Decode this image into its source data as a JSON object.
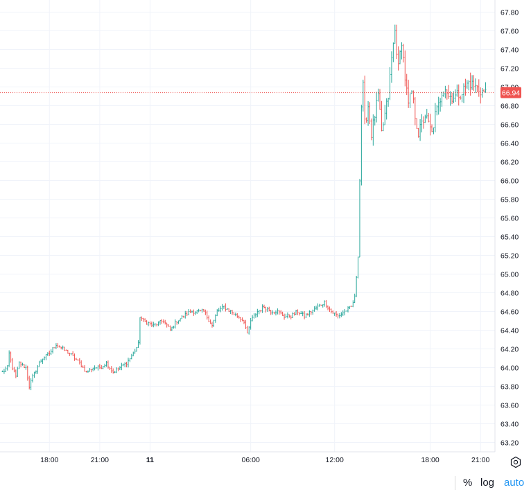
{
  "chart_data": {
    "type": "ohlc",
    "ylim": [
      63.1,
      67.93
    ],
    "y_ticks": [
      "63.20",
      "63.40",
      "63.60",
      "63.80",
      "64.00",
      "64.20",
      "64.40",
      "64.60",
      "64.80",
      "65.00",
      "65.20",
      "65.40",
      "65.60",
      "65.80",
      "66.00",
      "66.20",
      "66.40",
      "66.60",
      "66.80",
      "67.00",
      "67.20",
      "67.40",
      "67.60",
      "67.80"
    ],
    "x_ticks": [
      {
        "label": "18:00",
        "bar": 28
      },
      {
        "label": "21:00",
        "bar": 58
      },
      {
        "label": "11",
        "bar": 88,
        "bold": true
      },
      {
        "label": "06:00",
        "bar": 148
      },
      {
        "label": "12:00",
        "bar": 198
      },
      {
        "label": "18:00",
        "bar": 255
      },
      {
        "label": "21:00",
        "bar": 285
      }
    ],
    "last_price": "66.94",
    "last_price_value": 66.94,
    "colors": {
      "up": "#26a69a",
      "down": "#ef5350",
      "grid": "#f0f3fa",
      "last_price": "#ef5350",
      "label_text": "#ffffff"
    },
    "anchors": [
      [
        0,
        63.95
      ],
      [
        3,
        64.0
      ],
      [
        4,
        64.15
      ],
      [
        6,
        64.0
      ],
      [
        8,
        63.9
      ],
      [
        10,
        64.05
      ],
      [
        14,
        64.0
      ],
      [
        16,
        63.8
      ],
      [
        18,
        63.9
      ],
      [
        22,
        64.05
      ],
      [
        24,
        64.1
      ],
      [
        28,
        64.15
      ],
      [
        32,
        64.25
      ],
      [
        36,
        64.2
      ],
      [
        40,
        64.15
      ],
      [
        46,
        64.05
      ],
      [
        50,
        63.95
      ],
      [
        54,
        64.0
      ],
      [
        58,
        64.0
      ],
      [
        62,
        64.05
      ],
      [
        66,
        63.95
      ],
      [
        70,
        64.0
      ],
      [
        74,
        64.05
      ],
      [
        78,
        64.15
      ],
      [
        81,
        64.25
      ],
      [
        82,
        64.55
      ],
      [
        84,
        64.5
      ],
      [
        90,
        64.45
      ],
      [
        96,
        64.5
      ],
      [
        100,
        64.4
      ],
      [
        104,
        64.5
      ],
      [
        108,
        64.55
      ],
      [
        112,
        64.6
      ],
      [
        120,
        64.6
      ],
      [
        125,
        64.45
      ],
      [
        128,
        64.6
      ],
      [
        132,
        64.65
      ],
      [
        136,
        64.6
      ],
      [
        140,
        64.55
      ],
      [
        144,
        64.5
      ],
      [
        146,
        64.35
      ],
      [
        148,
        64.5
      ],
      [
        152,
        64.6
      ],
      [
        156,
        64.65
      ],
      [
        160,
        64.6
      ],
      [
        164,
        64.6
      ],
      [
        168,
        64.55
      ],
      [
        172,
        64.55
      ],
      [
        176,
        64.6
      ],
      [
        180,
        64.55
      ],
      [
        184,
        64.6
      ],
      [
        188,
        64.65
      ],
      [
        192,
        64.7
      ],
      [
        196,
        64.6
      ],
      [
        200,
        64.55
      ],
      [
        204,
        64.6
      ],
      [
        208,
        64.65
      ],
      [
        210,
        64.75
      ],
      [
        212,
        65.2
      ],
      [
        213,
        66.0
      ],
      [
        214,
        66.8
      ],
      [
        215,
        67.0
      ],
      [
        216,
        66.6
      ],
      [
        218,
        66.8
      ],
      [
        220,
        66.5
      ],
      [
        222,
        66.7
      ],
      [
        224,
        66.9
      ],
      [
        226,
        66.5
      ],
      [
        228,
        66.7
      ],
      [
        230,
        66.9
      ],
      [
        232,
        67.3
      ],
      [
        234,
        67.6
      ],
      [
        236,
        67.2
      ],
      [
        238,
        67.5
      ],
      [
        240,
        67.1
      ],
      [
        242,
        66.8
      ],
      [
        244,
        66.95
      ],
      [
        246,
        66.7
      ],
      [
        248,
        66.5
      ],
      [
        250,
        66.6
      ],
      [
        252,
        66.7
      ],
      [
        254,
        66.6
      ],
      [
        256,
        66.5
      ],
      [
        258,
        66.7
      ],
      [
        260,
        66.8
      ],
      [
        262,
        66.95
      ],
      [
        264,
        67.0
      ],
      [
        266,
        66.9
      ],
      [
        270,
        66.9
      ],
      [
        274,
        66.95
      ],
      [
        278,
        67.05
      ],
      [
        282,
        67.0
      ],
      [
        286,
        66.95
      ],
      [
        288,
        66.94
      ]
    ]
  },
  "controls": {
    "percent": "%",
    "log": "log",
    "auto": "auto"
  }
}
